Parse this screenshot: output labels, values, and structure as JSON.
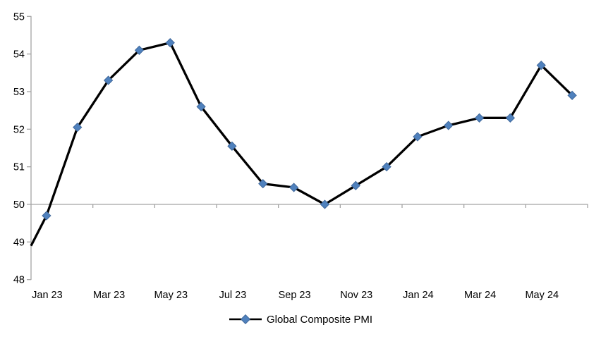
{
  "chart_data": {
    "type": "line",
    "title": "",
    "categories": [
      "Jan 23",
      "Feb 23",
      "Mar 23",
      "Apr 23",
      "May 23",
      "Jun 23",
      "Jul 23",
      "Aug 23",
      "Sep 23",
      "Oct 23",
      "Nov 23",
      "Dec 23",
      "Jan 24",
      "Feb 24",
      "Mar 24",
      "Apr 24",
      "May 24",
      "Jun 24"
    ],
    "series": [
      {
        "name": "Global Composite PMI",
        "values": [
          49.7,
          52.05,
          53.3,
          54.1,
          54.3,
          52.6,
          51.55,
          50.55,
          50.45,
          50.0,
          50.5,
          51.0,
          51.8,
          52.1,
          52.3,
          52.3,
          53.7,
          52.9
        ],
        "line_color": "#000000",
        "marker": "diamond",
        "marker_color": "#4F81BD",
        "marker_edge_color": "#41699C"
      }
    ],
    "left_edge_entry_value": 48.9,
    "y_ticks": [
      48,
      49,
      50,
      51,
      52,
      53,
      54,
      55
    ],
    "ylim": [
      48,
      55
    ],
    "x_tick_labels": [
      "Jan 23",
      "Mar 23",
      "May 23",
      "Jul 23",
      "Sep 23",
      "Nov 23",
      "Jan 24",
      "Mar 24",
      "May 24"
    ],
    "x_label_every": 2,
    "xlabel": "",
    "ylabel": "",
    "baseline_value": 50,
    "grid": "single horizontal axis line at 50 with category tick marks",
    "legend": {
      "label": "Global Composite PMI",
      "position": "bottom-center"
    },
    "axis_color": "#A3A3A3",
    "text_color": "#000000",
    "background_color": "#FFFFFF"
  }
}
